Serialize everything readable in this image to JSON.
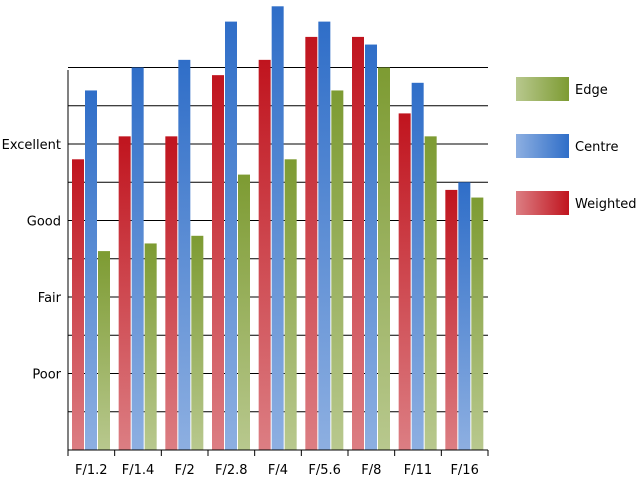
{
  "chart_data": {
    "type": "bar",
    "categories": [
      "F/1.2",
      "F/1.4",
      "F/2",
      "F/2.8",
      "F/4",
      "F/5.6",
      "F/8",
      "F/11",
      "F/16"
    ],
    "series": [
      {
        "name": "Weighted",
        "values": [
          3.8,
          4.1,
          4.1,
          4.9,
          5.1,
          5.4,
          5.4,
          4.4,
          3.4
        ],
        "color": "#c0141e"
      },
      {
        "name": "Centre",
        "values": [
          4.7,
          5.0,
          5.1,
          5.6,
          5.8,
          5.6,
          5.3,
          4.8,
          3.5
        ],
        "color": "#2f6ec8"
      },
      {
        "name": "Edge",
        "values": [
          2.6,
          2.7,
          2.8,
          3.6,
          3.8,
          4.7,
          5.0,
          4.1,
          3.3
        ],
        "color": "#7d9b32"
      }
    ],
    "legend_order": [
      "Edge",
      "Centre",
      "Weighted"
    ],
    "y_ticks": [
      {
        "label": "Poor",
        "value": 1.0
      },
      {
        "label": "Fair",
        "value": 2.0
      },
      {
        "label": "Good",
        "value": 3.0
      },
      {
        "label": "Excellent",
        "value": 4.0
      }
    ],
    "ylim": [
      0,
      5.8
    ],
    "title": "",
    "xlabel": "",
    "ylabel": "",
    "grid": true,
    "legend_position": "right"
  }
}
